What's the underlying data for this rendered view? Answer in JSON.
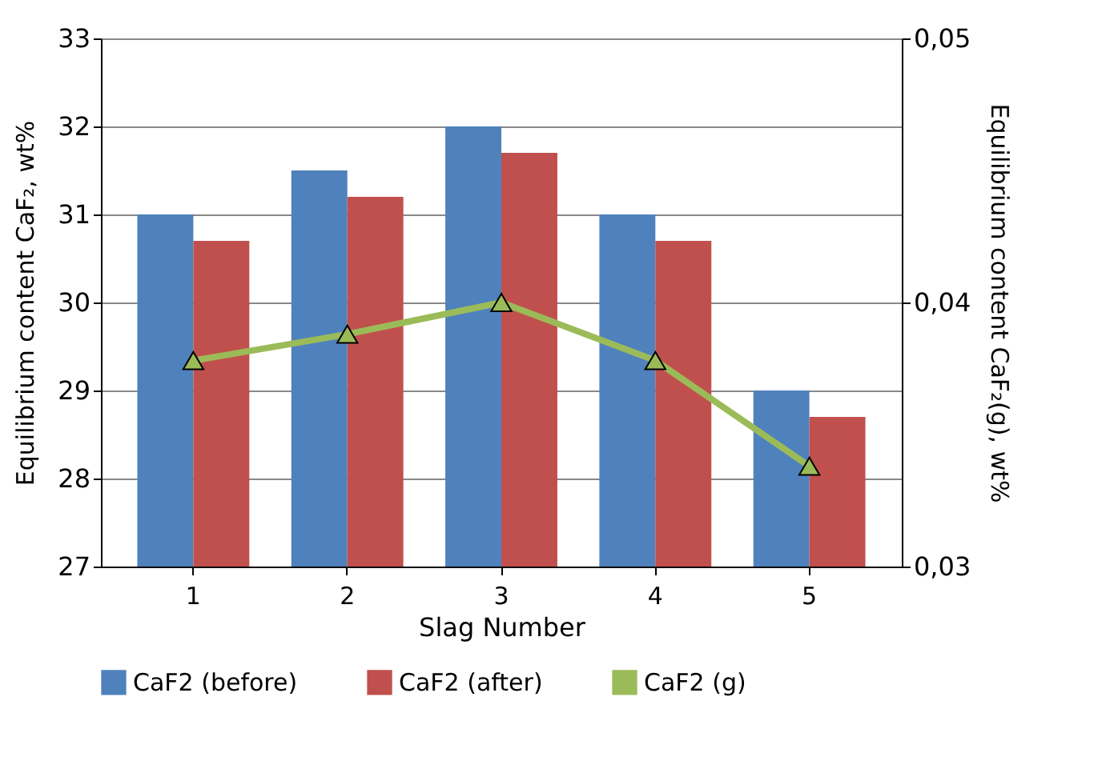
{
  "chart_data": {
    "type": "bar",
    "xlabel": "Slag Number",
    "ylabel": "Equilibrium content CaF₂, wt%",
    "y2label": "Equilibrium content CaF₂(g), wt%",
    "categories": [
      "1",
      "2",
      "3",
      "4",
      "5"
    ],
    "series": [
      {
        "name": "CaF2 (before)",
        "color": "#4f81bd",
        "values": [
          31,
          31.5,
          32,
          31,
          29
        ]
      },
      {
        "name": "CaF2 (after)",
        "color": "#c0504d",
        "values": [
          30.7,
          31.2,
          31.7,
          30.7,
          28.7
        ]
      },
      {
        "name": "CaF2 (g)",
        "type": "line",
        "axis": "y2",
        "color": "#9bbb59",
        "marker": "triangle",
        "values": [
          0.0378,
          0.0388,
          0.04,
          0.0378,
          0.0338
        ]
      }
    ],
    "ylim": [
      27,
      33
    ],
    "yticks": [
      27,
      28,
      29,
      30,
      31,
      32,
      33
    ],
    "y2lim": [
      0.03,
      0.05
    ],
    "y2ticks": [
      {
        "value": 0.03,
        "label": "0,03"
      },
      {
        "value": 0.04,
        "label": "0,04"
      },
      {
        "value": 0.05,
        "label": "0,05"
      }
    ],
    "grid": "y",
    "legend": "bottom"
  }
}
